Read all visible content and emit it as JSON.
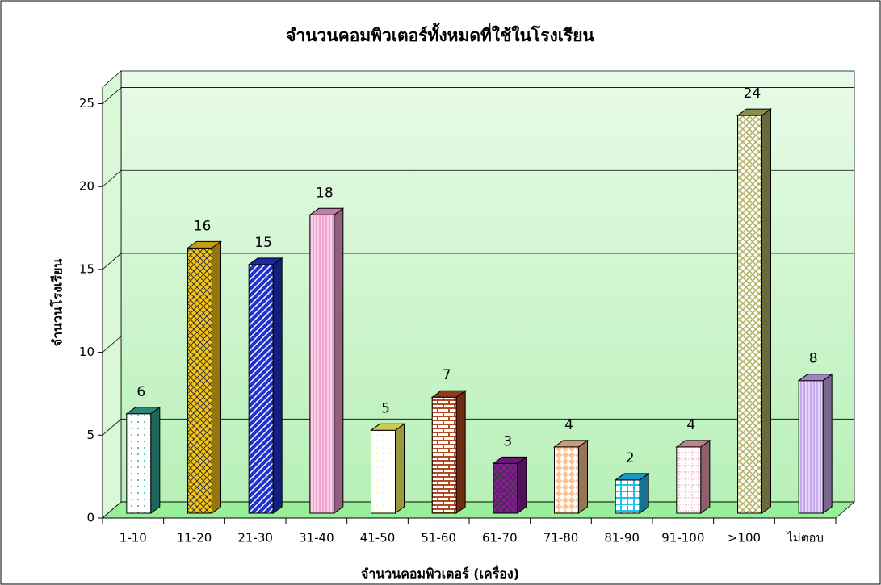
{
  "chart_data": {
    "type": "bar3d",
    "title": "จำนวนคอมพิวเตอร์ทั้งหมดที่ใช้ในโรงเรียน",
    "x_label": "จำนวนคอมพิวเตอร์ (เครื่อง)",
    "y_label": "จำนวนโรงเรียน",
    "categories": [
      "1-10",
      "11-20",
      "21-30",
      "31-40",
      "41-50",
      "51-60",
      "61-70",
      "71-80",
      "81-90",
      "91-100",
      ">100",
      "ไม่ตอบ"
    ],
    "values": [
      6,
      16,
      15,
      18,
      5,
      7,
      3,
      4,
      2,
      4,
      24,
      8
    ],
    "colors": [
      "#33aa99",
      "#f5c518",
      "#2233cc",
      "#f0a0d0",
      "#ffff66",
      "#b04a20",
      "#8a1a9a",
      "#ffc090",
      "#20c0f0",
      "#f0a0b0",
      "#b0b060",
      "#c8a8f0"
    ],
    "ylim": [
      0,
      26
    ],
    "yticks": [
      0,
      5,
      10,
      15,
      20,
      25
    ],
    "grid": true
  }
}
